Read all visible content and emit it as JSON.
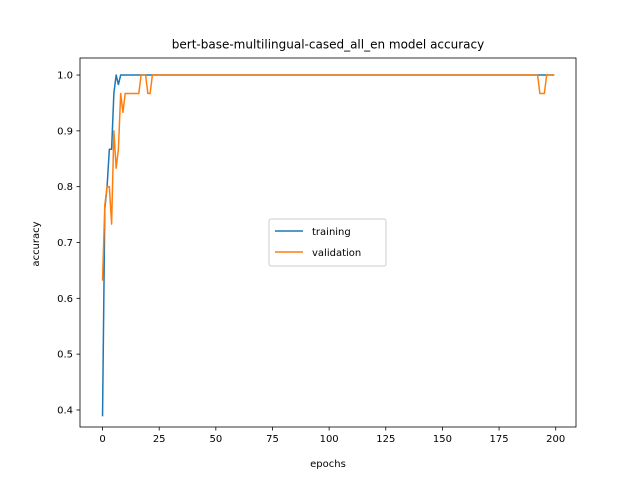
{
  "chart_data": {
    "type": "line",
    "title": "bert-base-multilingual-cased_all_en model accuracy",
    "xlabel": "epochs",
    "ylabel": "accuracy",
    "xlim": [
      -9.95,
      208.95
    ],
    "ylim": [
      0.3695,
      1.0305
    ],
    "xticks": [
      0,
      25,
      50,
      75,
      100,
      125,
      150,
      175,
      200
    ],
    "yticks": [
      0.4,
      0.5,
      0.6,
      0.7,
      0.8,
      0.9,
      1.0
    ],
    "ytick_labels": [
      "0.4",
      "0.5",
      "0.6",
      "0.7",
      "0.8",
      "0.9",
      "1.0"
    ],
    "grid": false,
    "legend": {
      "placement": "center",
      "entries": [
        "training",
        "validation"
      ]
    },
    "series": [
      {
        "name": "training",
        "color": "#1f77b4",
        "points": [
          [
            0,
            0.39
          ],
          [
            1,
            0.76
          ],
          [
            2,
            0.8
          ],
          [
            3,
            0.867
          ],
          [
            4,
            0.867
          ],
          [
            5,
            0.967
          ],
          [
            6,
            1.0
          ],
          [
            7,
            0.983
          ],
          [
            8,
            1.0
          ],
          [
            192,
            1.0
          ],
          [
            193,
            1.0
          ],
          [
            199,
            1.0
          ]
        ]
      },
      {
        "name": "validation",
        "color": "#ff7f0e",
        "points": [
          [
            0,
            0.633
          ],
          [
            1,
            0.767
          ],
          [
            2,
            0.8
          ],
          [
            3,
            0.8
          ],
          [
            4,
            0.733
          ],
          [
            5,
            0.9
          ],
          [
            6,
            0.833
          ],
          [
            7,
            0.867
          ],
          [
            8,
            0.967
          ],
          [
            9,
            0.933
          ],
          [
            10,
            0.967
          ],
          [
            16,
            0.967
          ],
          [
            17,
            1.0
          ],
          [
            19,
            1.0
          ],
          [
            20,
            0.967
          ],
          [
            21,
            0.967
          ],
          [
            22,
            1.0
          ],
          [
            192,
            1.0
          ],
          [
            193,
            0.967
          ],
          [
            195,
            0.967
          ],
          [
            196,
            1.0
          ],
          [
            199,
            1.0
          ]
        ]
      }
    ]
  }
}
